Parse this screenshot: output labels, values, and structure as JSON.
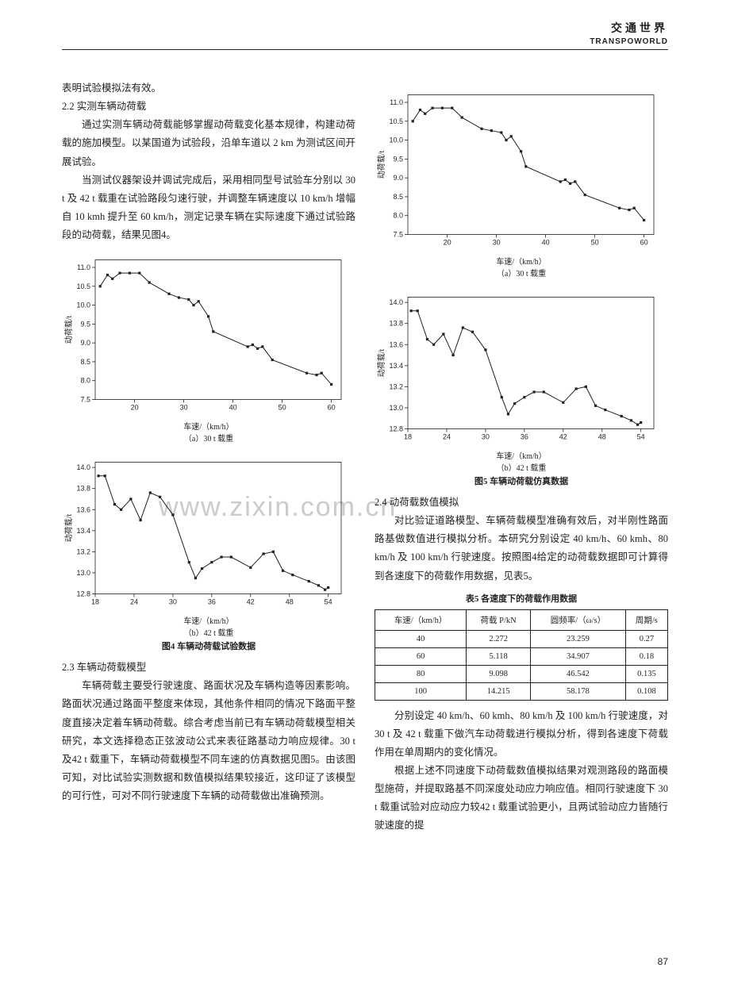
{
  "header": {
    "cn": "交通世界",
    "en": "TRANSPOWORLD"
  },
  "page_number": "87",
  "watermark": "www.zixin.com.cn",
  "left": {
    "p1": "表明试验模拟法有效。",
    "sec22": "2.2  实测车辆动荷载",
    "p22a": "通过实测车辆动荷载能够掌握动荷载变化基本规律，构建动荷载的施加模型。以某国道为试验段，沿单车道以 2 km 为测试区间开展试验。",
    "p22b": "当测试仪器架设并调试完成后，采用相同型号试验车分别以 30 t 及 42 t 载重在试验路段匀速行驶，并调整车辆速度以 10 km/h 增幅自 10 kmh 提升至 60 km/h，测定记录车辆在实际速度下通过试验路段的动荷载，结果见图4。",
    "fig4_sub_a": "（a）30 t 载重",
    "fig4_sub_b": "（b）42 t 载重",
    "fig4_title": "图4  车辆动荷载试验数据",
    "sec23": "2.3  车辆动荷载模型",
    "p23": "车辆荷载主要受行驶速度、路面状况及车辆构造等因素影响。路面状况通过路面平整度来体现，其他条件相同的情况下路面平整度直接决定着车辆动荷载。综合考虑当前已有车辆动荷载模型相关研究，本文选择稳态正弦波动公式来表征路基动力响应规律。30 t 及42 t 载重下，车辆动荷载模型不同车速的仿真数据见图5。由该图可知，对比试验实测数据和数值模拟结果较接近，这印证了该模型的可行性，可对不同行驶速度下车辆的动荷载做出准确预测。"
  },
  "right": {
    "fig5_sub_a": "（a）30 t 载重",
    "fig5_sub_b": "（b）42 t 载重",
    "fig5_title": "图5  车辆动荷载仿真数据",
    "sec24": "2.4  动荷载数值模拟",
    "p24a": "对比验证道路模型、车辆荷载模型准确有效后，对半刚性路面路基做数值进行模拟分析。本研究分别设定 40 km/h、60 kmh、80 km/h 及 100 km/h 行驶速度。按照图4给定的动荷载数据即可计算得到各速度下的荷载作用数据，见表5。",
    "table5_title": "表5  各速度下的荷载作用数据",
    "table5": {
      "columns": [
        "车速/（km/h）",
        "荷载 P/kN",
        "圆频率/（ω/s）",
        "周期/s"
      ],
      "rows": [
        [
          "40",
          "2.272",
          "23.259",
          "0.27"
        ],
        [
          "60",
          "5.118",
          "34.907",
          "0.18"
        ],
        [
          "80",
          "9.098",
          "46.542",
          "0.135"
        ],
        [
          "100",
          "14.215",
          "58.178",
          "0.108"
        ]
      ]
    },
    "p24b": "分别设定 40 km/h、60 kmh、80 km/h 及 100 km/h 行驶速度，对 30 t 及 42 t 载重下做汽车动荷载进行模拟分析，得到各速度下荷载作用在单周期内的变化情况。",
    "p24c": "根据上述不同速度下动荷载数值模拟结果对观测路段的路面模型施荷，并提取路基不同深度处动应力响应值。相同行驶速度下 30 t 载重试验对应动应力较42 t 载重试验更小，且两试验动应力皆随行驶速度的提"
  },
  "charts": {
    "a30": {
      "type": "line-scatter",
      "xlabel": "车速/（km/h）",
      "ylabel": "动荷载/t",
      "xlim": [
        12,
        62
      ],
      "ylim": [
        7.5,
        11.2
      ],
      "xticks": [
        20,
        30,
        40,
        50,
        60
      ],
      "yticks": [
        7.5,
        8.0,
        8.5,
        9.0,
        9.5,
        10.0,
        10.5,
        11.0
      ],
      "points": [
        [
          13,
          10.5
        ],
        [
          14.5,
          10.8
        ],
        [
          15.5,
          10.7
        ],
        [
          17,
          10.85
        ],
        [
          19,
          10.85
        ],
        [
          21,
          10.85
        ],
        [
          23,
          10.6
        ],
        [
          27,
          10.3
        ],
        [
          29,
          10.2
        ],
        [
          31,
          10.15
        ],
        [
          32,
          10.0
        ],
        [
          33,
          10.1
        ],
        [
          35,
          9.7
        ],
        [
          36,
          9.3
        ],
        [
          43,
          8.9
        ],
        [
          44,
          8.95
        ],
        [
          45,
          8.85
        ],
        [
          46,
          8.9
        ],
        [
          48,
          8.55
        ],
        [
          55,
          8.2
        ],
        [
          57,
          8.15
        ],
        [
          58,
          8.2
        ],
        [
          60,
          7.9
        ]
      ],
      "marker": "square",
      "marker_size": 3.2,
      "line_width": 1,
      "color": "#231f20",
      "bg": "#ffffff",
      "label_fontsize": 9
    },
    "b42": {
      "type": "line-scatter",
      "xlabel": "车速/（km/h）",
      "ylabel": "动荷载/t",
      "xlim": [
        18,
        56
      ],
      "ylim": [
        12.8,
        14.05
      ],
      "xticks": [
        18,
        24,
        30,
        36,
        42,
        48,
        54
      ],
      "yticks": [
        12.8,
        13.0,
        13.2,
        13.4,
        13.6,
        13.8,
        14.0
      ],
      "points": [
        [
          18.5,
          13.92
        ],
        [
          19.5,
          13.92
        ],
        [
          21,
          13.65
        ],
        [
          22,
          13.6
        ],
        [
          23.5,
          13.7
        ],
        [
          25,
          13.5
        ],
        [
          26.5,
          13.76
        ],
        [
          28,
          13.72
        ],
        [
          30,
          13.55
        ],
        [
          32.5,
          13.1
        ],
        [
          33.5,
          12.95
        ],
        [
          34.5,
          13.04
        ],
        [
          36,
          13.1
        ],
        [
          37.5,
          13.15
        ],
        [
          39,
          13.15
        ],
        [
          42,
          13.05
        ],
        [
          44,
          13.18
        ],
        [
          45.5,
          13.2
        ],
        [
          47,
          13.02
        ],
        [
          48.5,
          12.98
        ],
        [
          51,
          12.92
        ],
        [
          52.5,
          12.88
        ],
        [
          53.5,
          12.84
        ],
        [
          54,
          12.86
        ]
      ],
      "marker": "square",
      "marker_size": 3.2,
      "line_width": 1,
      "color": "#231f20",
      "bg": "#ffffff",
      "label_fontsize": 9
    },
    "a30r": {
      "type": "line-scatter",
      "xlabel": "车速/（km/h）",
      "ylabel": "动荷载/t",
      "xlim": [
        12,
        62
      ],
      "ylim": [
        7.5,
        11.2
      ],
      "xticks": [
        20,
        30,
        40,
        50,
        60
      ],
      "yticks": [
        7.5,
        8.0,
        8.5,
        9.0,
        9.5,
        10.0,
        10.5,
        11.0
      ],
      "points": [
        [
          13,
          10.5
        ],
        [
          14.5,
          10.8
        ],
        [
          15.5,
          10.7
        ],
        [
          17,
          10.85
        ],
        [
          19,
          10.85
        ],
        [
          21,
          10.85
        ],
        [
          23,
          10.6
        ],
        [
          27,
          10.3
        ],
        [
          29,
          10.25
        ],
        [
          31,
          10.2
        ],
        [
          32,
          10.0
        ],
        [
          33,
          10.1
        ],
        [
          35,
          9.7
        ],
        [
          36,
          9.3
        ],
        [
          43,
          8.9
        ],
        [
          44,
          8.95
        ],
        [
          45,
          8.85
        ],
        [
          46,
          8.9
        ],
        [
          48,
          8.55
        ],
        [
          55,
          8.2
        ],
        [
          57,
          8.15
        ],
        [
          58,
          8.2
        ],
        [
          60,
          7.88
        ]
      ],
      "marker": "square",
      "marker_size": 3.2,
      "line_width": 1,
      "color": "#231f20",
      "bg": "#ffffff",
      "label_fontsize": 9
    },
    "b42r": {
      "type": "line-scatter",
      "xlabel": "车速/（km/h）",
      "ylabel": "动荷载/t",
      "xlim": [
        18,
        56
      ],
      "ylim": [
        12.8,
        14.05
      ],
      "xticks": [
        18,
        24,
        30,
        36,
        42,
        48,
        54
      ],
      "yticks": [
        12.8,
        13.0,
        13.2,
        13.4,
        13.6,
        13.8,
        14.0
      ],
      "points": [
        [
          18.5,
          13.92
        ],
        [
          19.5,
          13.92
        ],
        [
          21,
          13.65
        ],
        [
          22,
          13.6
        ],
        [
          23.5,
          13.7
        ],
        [
          25,
          13.5
        ],
        [
          26.5,
          13.76
        ],
        [
          28,
          13.72
        ],
        [
          30,
          13.55
        ],
        [
          32.5,
          13.1
        ],
        [
          33.5,
          12.94
        ],
        [
          34.5,
          13.04
        ],
        [
          36,
          13.1
        ],
        [
          37.5,
          13.15
        ],
        [
          39,
          13.15
        ],
        [
          42,
          13.05
        ],
        [
          44,
          13.18
        ],
        [
          45.5,
          13.2
        ],
        [
          47,
          13.02
        ],
        [
          48.5,
          12.98
        ],
        [
          51,
          12.92
        ],
        [
          52.5,
          12.88
        ],
        [
          53.5,
          12.84
        ],
        [
          54,
          12.86
        ]
      ],
      "marker": "square",
      "marker_size": 3.2,
      "line_width": 1,
      "color": "#231f20",
      "bg": "#ffffff",
      "label_fontsize": 9
    }
  }
}
